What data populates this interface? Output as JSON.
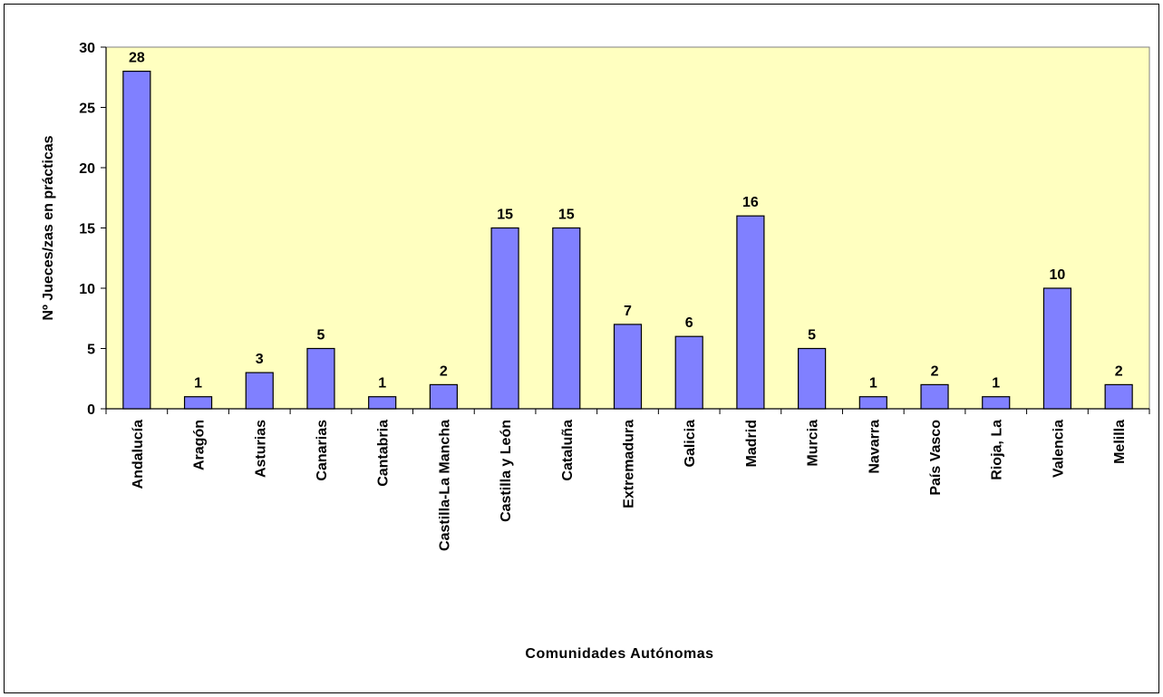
{
  "chart_data": {
    "type": "bar",
    "categories": [
      "Andalucía",
      "Aragón",
      "Asturias",
      "Canarias",
      "Cantabria",
      "Castilla-La Mancha",
      "Castilla y León",
      "Cataluña",
      "Extremadura",
      "Galicia",
      "Madrid",
      "Murcia",
      "Navarra",
      "País Vasco",
      "Rioja, La",
      "Valencia",
      "Melilla"
    ],
    "values": [
      28,
      1,
      3,
      5,
      1,
      2,
      15,
      15,
      7,
      6,
      16,
      5,
      1,
      2,
      1,
      10,
      2
    ],
    "xlabel": "Comunidades Autónomas",
    "ylabel": "Nº Jueces/zas en prácticas",
    "ylim": [
      0,
      30
    ],
    "yticks": [
      0,
      5,
      10,
      15,
      20,
      25,
      30
    ],
    "grid": false,
    "legend": "none",
    "colors": {
      "plot_background": "#FFFFC0",
      "bar_fill": "#8080FF",
      "bar_stroke": "#000000"
    }
  }
}
